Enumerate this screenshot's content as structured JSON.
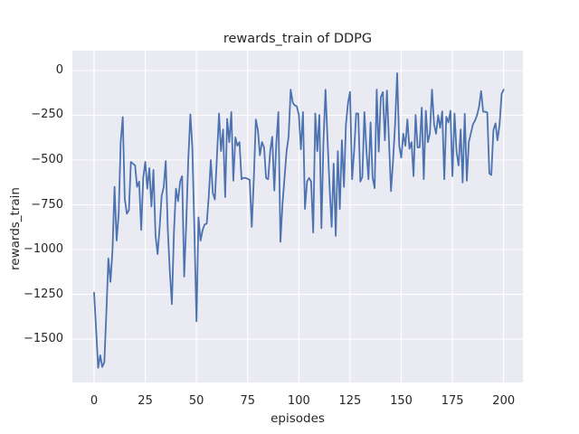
{
  "figure": {
    "title": "rewards_train of DDPG",
    "xlabel": "episodes",
    "ylabel": "rewards_train"
  },
  "chart_data": {
    "type": "line",
    "title": "rewards_train of DDPG",
    "xlabel": "episodes",
    "ylabel": "rewards_train",
    "legend_position": "none",
    "grid": true,
    "grid_color": "#ffffff",
    "plot_background": "#eaeaf2",
    "figure_background": "#ffffff",
    "line_color": "#4c72b0",
    "text_color": "#262626",
    "xlim": [
      -10.6,
      209.4
    ],
    "ylim": [
      -1742,
      111
    ],
    "xticks": [
      0,
      25,
      50,
      75,
      100,
      125,
      150,
      175,
      200
    ],
    "yticks": [
      0,
      -250,
      -500,
      -750,
      -1000,
      -1250,
      -1500
    ],
    "x": [
      0,
      1,
      2,
      3,
      4,
      5,
      6,
      7,
      8,
      9,
      10,
      11,
      12,
      13,
      14,
      15,
      16,
      17,
      18,
      19,
      20,
      21,
      22,
      23,
      24,
      25,
      26,
      27,
      28,
      29,
      30,
      31,
      32,
      33,
      34,
      35,
      36,
      37,
      38,
      39,
      40,
      41,
      42,
      43,
      44,
      45,
      46,
      47,
      48,
      49,
      50,
      51,
      52,
      53,
      54,
      55,
      56,
      57,
      58,
      59,
      60,
      61,
      62,
      63,
      64,
      65,
      66,
      67,
      68,
      69,
      70,
      71,
      72,
      73,
      74,
      75,
      76,
      77,
      78,
      79,
      80,
      81,
      82,
      83,
      84,
      85,
      86,
      87,
      88,
      89,
      90,
      91,
      92,
      93,
      94,
      95,
      96,
      97,
      98,
      99,
      100,
      101,
      102,
      103,
      104,
      105,
      106,
      107,
      108,
      109,
      110,
      111,
      112,
      113,
      114,
      115,
      116,
      117,
      118,
      119,
      120,
      121,
      122,
      123,
      124,
      125,
      126,
      127,
      128,
      129,
      130,
      131,
      132,
      133,
      134,
      135,
      136,
      137,
      138,
      139,
      140,
      141,
      142,
      143,
      144,
      145,
      146,
      147,
      148,
      149,
      150,
      151,
      152,
      153,
      154,
      155,
      156,
      157,
      158,
      159,
      160,
      161,
      162,
      163,
      164,
      165,
      166,
      167,
      168,
      169,
      170,
      171,
      172,
      173,
      174,
      175,
      176,
      177,
      178,
      179,
      180,
      181,
      182,
      183,
      184,
      185,
      186,
      187,
      188,
      189,
      190,
      191,
      192,
      193,
      194,
      195,
      196,
      197,
      198,
      199,
      200
    ],
    "y": [
      -1240,
      -1450,
      -1660,
      -1590,
      -1655,
      -1630,
      -1350,
      -1050,
      -1180,
      -1000,
      -650,
      -950,
      -800,
      -400,
      -260,
      -715,
      -800,
      -780,
      -510,
      -520,
      -530,
      -650,
      -620,
      -890,
      -600,
      -510,
      -660,
      -545,
      -760,
      -555,
      -920,
      -1025,
      -880,
      -700,
      -650,
      -505,
      -890,
      -1120,
      -1305,
      -900,
      -660,
      -730,
      -620,
      -590,
      -1150,
      -850,
      -500,
      -245,
      -430,
      -900,
      -1400,
      -820,
      -950,
      -890,
      -860,
      -855,
      -700,
      -500,
      -685,
      -720,
      -480,
      -240,
      -450,
      -330,
      -707,
      -270,
      -400,
      -232,
      -615,
      -373,
      -420,
      -400,
      -607,
      -600,
      -600,
      -605,
      -610,
      -873,
      -600,
      -273,
      -335,
      -473,
      -400,
      -430,
      -600,
      -607,
      -450,
      -370,
      -670,
      -400,
      -232,
      -957,
      -750,
      -600,
      -450,
      -370,
      -107,
      -180,
      -195,
      -200,
      -250,
      -440,
      -232,
      -773,
      -620,
      -600,
      -620,
      -905,
      -240,
      -450,
      -248,
      -880,
      -400,
      -107,
      -383,
      -650,
      -873,
      -520,
      -923,
      -450,
      -773,
      -390,
      -650,
      -300,
      -180,
      -120,
      -607,
      -445,
      -240,
      -240,
      -620,
      -595,
      -232,
      -450,
      -607,
      -290,
      -595,
      -657,
      -107,
      -453,
      -150,
      -120,
      -390,
      -112,
      -400,
      -673,
      -500,
      -300,
      -15,
      -420,
      -487,
      -353,
      -420,
      -273,
      -437,
      -400,
      -590,
      -248,
      -430,
      -428,
      -207,
      -607,
      -225,
      -400,
      -350,
      -107,
      -300,
      -353,
      -250,
      -320,
      -228,
      -607,
      -258,
      -290,
      -225,
      -590,
      -240,
      -455,
      -530,
      -330,
      -625,
      -242,
      -615,
      -400,
      -350,
      -300,
      -280,
      -250,
      -200,
      -115,
      -230,
      -230,
      -235,
      -575,
      -583,
      -333,
      -295,
      -390,
      -300,
      -130,
      -107
    ]
  }
}
